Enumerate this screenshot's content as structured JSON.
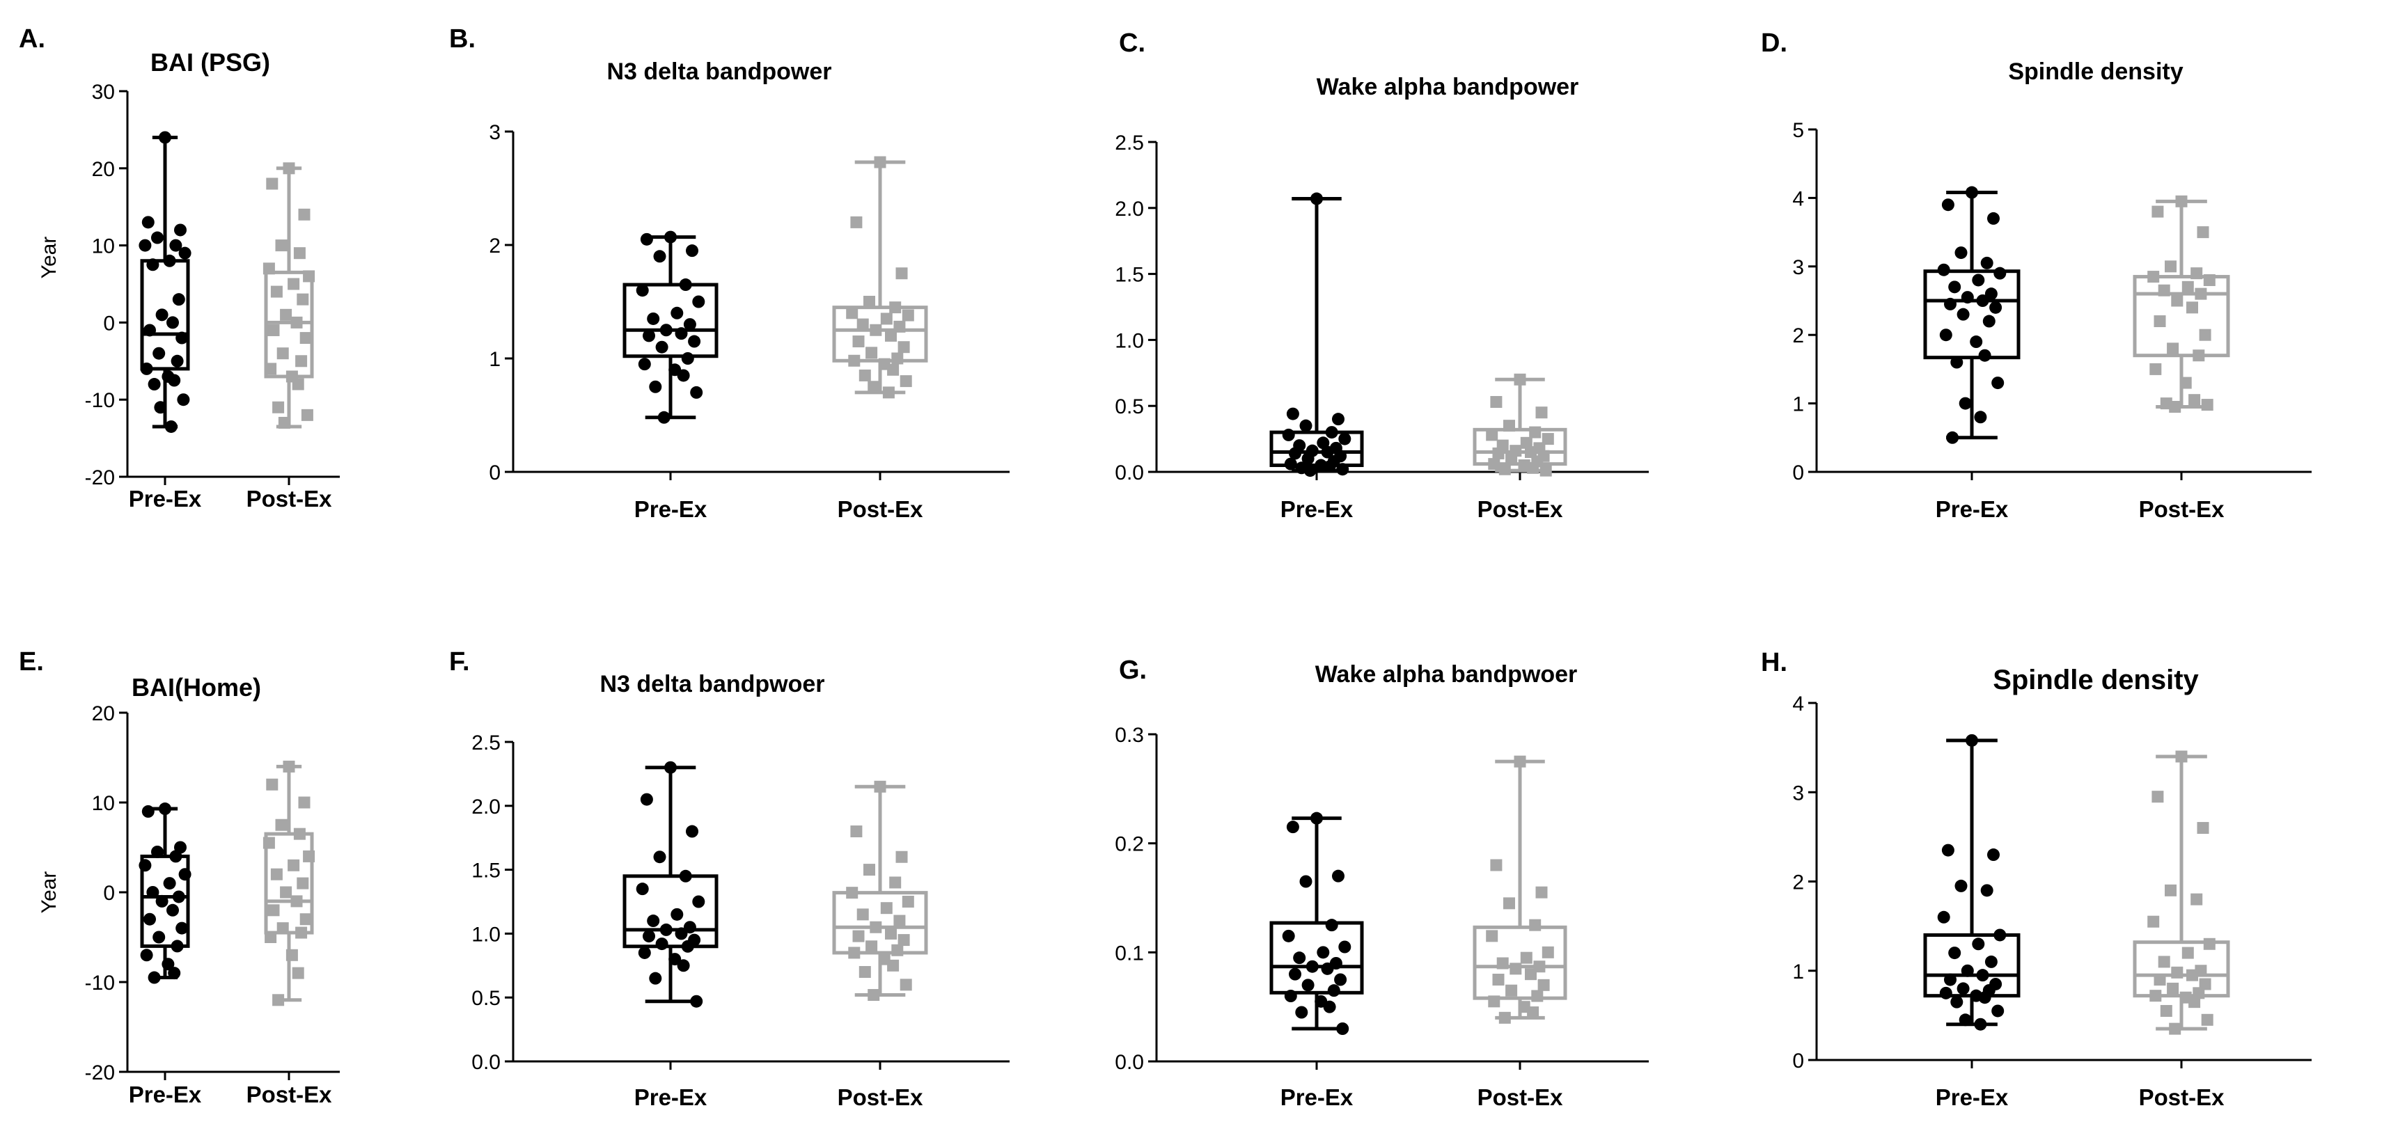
{
  "colors": {
    "pre": "#000000",
    "post": "#a6a6a6",
    "axis": "#000000"
  },
  "chart_data": [
    {
      "id": "A",
      "letter": "A.",
      "type": "box",
      "title": "BAI (PSG)",
      "ylabel": "Year",
      "categories": [
        "Pre-Ex",
        "Post-Ex"
      ],
      "ylim": [
        -20,
        30
      ],
      "ticks": [
        "-20",
        "-10",
        "0",
        "10",
        "20",
        "30"
      ],
      "series": [
        {
          "name": "Pre-Ex",
          "marker": "circle",
          "whiskers": [
            -13.5,
            24
          ],
          "box": [
            -6,
            -1.5,
            8
          ],
          "points": [
            24,
            13,
            12,
            11,
            10,
            10,
            9,
            8,
            7.5,
            3,
            1,
            0,
            -1,
            -2,
            -4,
            -5,
            -6,
            -7,
            -7.5,
            -8,
            -10,
            -11,
            -13.5
          ]
        },
        {
          "name": "Post-Ex",
          "marker": "square",
          "whiskers": [
            -13.5,
            20
          ],
          "box": [
            -7,
            0,
            6.5
          ],
          "points": [
            20,
            18,
            14,
            10,
            9,
            7,
            6,
            5,
            4,
            3,
            1,
            0,
            -1,
            -2,
            -4,
            -5,
            -6,
            -7,
            -8,
            -11,
            -12,
            -13
          ]
        }
      ]
    },
    {
      "id": "B",
      "letter": "B.",
      "type": "box",
      "title": "N3 delta bandpower",
      "ylabel": "",
      "categories": [
        "Pre-Ex",
        "Post-Ex"
      ],
      "ylim": [
        0,
        3
      ],
      "ticks": [
        "0",
        "1",
        "2",
        "3"
      ],
      "series": [
        {
          "name": "Pre-Ex",
          "marker": "circle",
          "whiskers": [
            0.48,
            2.07
          ],
          "box": [
            1.02,
            1.25,
            1.65
          ],
          "points": [
            2.07,
            2.05,
            1.95,
            1.9,
            1.65,
            1.6,
            1.5,
            1.4,
            1.35,
            1.3,
            1.25,
            1.22,
            1.2,
            1.15,
            1.1,
            1.0,
            0.95,
            0.9,
            0.85,
            0.75,
            0.7,
            0.48
          ]
        },
        {
          "name": "Post-Ex",
          "marker": "square",
          "whiskers": [
            0.7,
            2.73
          ],
          "box": [
            0.98,
            1.25,
            1.45
          ],
          "points": [
            2.73,
            2.2,
            1.75,
            1.5,
            1.45,
            1.4,
            1.38,
            1.35,
            1.3,
            1.28,
            1.25,
            1.2,
            1.15,
            1.1,
            1.05,
            1.0,
            0.98,
            0.95,
            0.9,
            0.85,
            0.8,
            0.75,
            0.7
          ]
        }
      ]
    },
    {
      "id": "C",
      "letter": "C.",
      "type": "box",
      "title": "Wake alpha bandpower",
      "ylabel": "",
      "categories": [
        "Pre-Ex",
        "Post-Ex"
      ],
      "ylim": [
        0,
        2.5
      ],
      "ticks": [
        "0.0",
        "0.5",
        "1.0",
        "1.5",
        "2.0",
        "2.5"
      ],
      "series": [
        {
          "name": "Pre-Ex",
          "marker": "circle",
          "whiskers": [
            0.01,
            2.07
          ],
          "box": [
            0.05,
            0.15,
            0.3
          ],
          "points": [
            2.07,
            0.44,
            0.4,
            0.35,
            0.3,
            0.28,
            0.25,
            0.22,
            0.2,
            0.18,
            0.16,
            0.15,
            0.14,
            0.12,
            0.1,
            0.08,
            0.06,
            0.05,
            0.04,
            0.03,
            0.02,
            0.01
          ]
        },
        {
          "name": "Post-Ex",
          "marker": "square",
          "whiskers": [
            0.01,
            0.7
          ],
          "box": [
            0.06,
            0.15,
            0.32
          ],
          "points": [
            0.7,
            0.53,
            0.45,
            0.35,
            0.3,
            0.28,
            0.25,
            0.22,
            0.2,
            0.18,
            0.16,
            0.15,
            0.14,
            0.12,
            0.1,
            0.08,
            0.06,
            0.05,
            0.03,
            0.02,
            0.01
          ]
        }
      ]
    },
    {
      "id": "D",
      "letter": "D.",
      "type": "box",
      "title": "Spindle density",
      "ylabel": "",
      "categories": [
        "Pre-Ex",
        "Post-Ex"
      ],
      "ylim": [
        0,
        5
      ],
      "ticks": [
        "0",
        "1",
        "2",
        "3",
        "4",
        "5"
      ],
      "series": [
        {
          "name": "Pre-Ex",
          "marker": "circle",
          "whiskers": [
            0.5,
            4.08
          ],
          "box": [
            1.67,
            2.5,
            2.93
          ],
          "points": [
            4.08,
            3.9,
            3.7,
            3.2,
            3.05,
            2.95,
            2.9,
            2.8,
            2.7,
            2.6,
            2.55,
            2.5,
            2.45,
            2.4,
            2.3,
            2.2,
            2.0,
            1.9,
            1.7,
            1.6,
            1.3,
            1.0,
            0.8,
            0.5
          ]
        },
        {
          "name": "Post-Ex",
          "marker": "square",
          "whiskers": [
            0.95,
            3.95
          ],
          "box": [
            1.7,
            2.6,
            2.85
          ],
          "points": [
            3.95,
            3.8,
            3.5,
            3.0,
            2.9,
            2.85,
            2.8,
            2.7,
            2.65,
            2.6,
            2.5,
            2.4,
            2.2,
            2.0,
            1.8,
            1.7,
            1.5,
            1.3,
            1.05,
            1.0,
            0.98,
            0.95
          ]
        }
      ]
    },
    {
      "id": "E",
      "letter": "E.",
      "type": "box",
      "title": "BAI(Home)",
      "ylabel": "Year",
      "categories": [
        "Pre-Ex",
        "Post-Ex"
      ],
      "ylim": [
        -20,
        20
      ],
      "ticks": [
        "-20",
        "-10",
        "0",
        "10",
        "20"
      ],
      "series": [
        {
          "name": "Pre-Ex",
          "marker": "circle",
          "whiskers": [
            -9.5,
            9.3
          ],
          "box": [
            -6,
            -0.5,
            4
          ],
          "points": [
            9.3,
            9,
            5,
            4.5,
            4,
            3,
            2,
            1,
            0,
            -0.5,
            -1,
            -2,
            -3,
            -4,
            -5,
            -6,
            -7,
            -8,
            -9,
            -9.5
          ]
        },
        {
          "name": "Post-Ex",
          "marker": "square",
          "whiskers": [
            -12,
            14
          ],
          "box": [
            -4.5,
            -1,
            6.5
          ],
          "points": [
            14,
            12,
            10,
            7.5,
            6.5,
            5.5,
            4,
            3,
            2,
            1,
            0,
            -1,
            -2,
            -3,
            -4,
            -4.5,
            -5,
            -7,
            -9,
            -12
          ]
        }
      ]
    },
    {
      "id": "F",
      "letter": "F.",
      "type": "box",
      "title": "N3 delta bandpwoer",
      "ylabel": "",
      "categories": [
        "Pre-Ex",
        "Post-Ex"
      ],
      "ylim": [
        0,
        2.5
      ],
      "ticks": [
        "0.0",
        "0.5",
        "1.0",
        "1.5",
        "2.0",
        "2.5"
      ],
      "series": [
        {
          "name": "Pre-Ex",
          "marker": "circle",
          "whiskers": [
            0.47,
            2.3
          ],
          "box": [
            0.9,
            1.03,
            1.45
          ],
          "points": [
            2.3,
            2.05,
            1.8,
            1.6,
            1.45,
            1.35,
            1.25,
            1.15,
            1.1,
            1.05,
            1.03,
            1.0,
            0.98,
            0.95,
            0.92,
            0.9,
            0.85,
            0.8,
            0.75,
            0.65,
            0.47
          ]
        },
        {
          "name": "Post-Ex",
          "marker": "square",
          "whiskers": [
            0.52,
            2.15
          ],
          "box": [
            0.85,
            1.05,
            1.32
          ],
          "points": [
            2.15,
            1.8,
            1.6,
            1.5,
            1.4,
            1.32,
            1.25,
            1.2,
            1.15,
            1.1,
            1.05,
            1.0,
            0.98,
            0.95,
            0.9,
            0.87,
            0.85,
            0.8,
            0.75,
            0.7,
            0.6,
            0.52
          ]
        }
      ]
    },
    {
      "id": "G",
      "letter": "G.",
      "type": "box",
      "title": "Wake alpha bandpwoer",
      "ylabel": "",
      "categories": [
        "Pre-Ex",
        "Post-Ex"
      ],
      "ylim": [
        0,
        0.3
      ],
      "ticks": [
        "0.0",
        "0.1",
        "0.2",
        "0.3"
      ],
      "series": [
        {
          "name": "Pre-Ex",
          "marker": "circle",
          "whiskers": [
            0.03,
            0.223
          ],
          "box": [
            0.063,
            0.087,
            0.127
          ],
          "points": [
            0.223,
            0.215,
            0.17,
            0.165,
            0.125,
            0.115,
            0.105,
            0.1,
            0.095,
            0.09,
            0.087,
            0.085,
            0.08,
            0.075,
            0.07,
            0.065,
            0.06,
            0.055,
            0.05,
            0.045,
            0.03
          ]
        },
        {
          "name": "Post-Ex",
          "marker": "square",
          "whiskers": [
            0.04,
            0.275
          ],
          "box": [
            0.058,
            0.087,
            0.123
          ],
          "points": [
            0.275,
            0.18,
            0.155,
            0.145,
            0.125,
            0.115,
            0.1,
            0.095,
            0.09,
            0.087,
            0.085,
            0.08,
            0.075,
            0.07,
            0.065,
            0.06,
            0.055,
            0.05,
            0.045,
            0.04
          ]
        }
      ]
    },
    {
      "id": "H",
      "letter": "H.",
      "type": "box",
      "title": "Spindle density",
      "ylabel": "",
      "categories": [
        "Pre-Ex",
        "Post-Ex"
      ],
      "ylim": [
        0,
        4
      ],
      "ticks": [
        "0",
        "1",
        "2",
        "3",
        "4"
      ],
      "series": [
        {
          "name": "Pre-Ex",
          "marker": "circle",
          "whiskers": [
            0.4,
            3.58
          ],
          "box": [
            0.72,
            0.95,
            1.4
          ],
          "points": [
            3.58,
            2.35,
            2.3,
            1.95,
            1.9,
            1.6,
            1.4,
            1.3,
            1.2,
            1.1,
            1.0,
            0.95,
            0.9,
            0.85,
            0.8,
            0.78,
            0.75,
            0.72,
            0.7,
            0.65,
            0.55,
            0.45,
            0.4
          ]
        },
        {
          "name": "Post-Ex",
          "marker": "square",
          "whiskers": [
            0.35,
            3.4
          ],
          "box": [
            0.72,
            0.95,
            1.32
          ],
          "points": [
            3.4,
            2.95,
            2.6,
            1.9,
            1.8,
            1.55,
            1.3,
            1.2,
            1.1,
            1.0,
            0.98,
            0.95,
            0.9,
            0.85,
            0.8,
            0.75,
            0.72,
            0.7,
            0.65,
            0.55,
            0.45,
            0.35
          ]
        }
      ]
    }
  ]
}
